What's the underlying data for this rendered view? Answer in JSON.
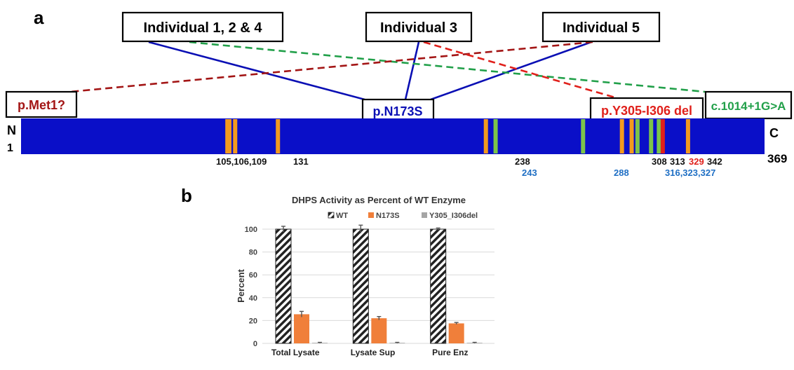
{
  "panel_a": {
    "panel_label": "a",
    "individuals": [
      {
        "id": "ind124",
        "label": "Individual 1, 2 & 4"
      },
      {
        "id": "ind3",
        "label": "Individual 3"
      },
      {
        "id": "ind5",
        "label": "Individual 5"
      }
    ],
    "variants": {
      "met1": {
        "label": "p.Met1?",
        "color": "#a31515"
      },
      "n173s": {
        "label": "p.N173S",
        "color": "#0a0fb4"
      },
      "del": {
        "label": "p.Y305-I306 del",
        "color": "#e0201b"
      },
      "splice": {
        "label": "c.1014+1G>A",
        "color": "#22a04a"
      }
    },
    "protein": {
      "n_term": "N",
      "c_term": "C",
      "start": "1",
      "end": "369",
      "bar_color": "#0a0fc8",
      "length": 369,
      "orange_positions": [
        105,
        106,
        109,
        131,
        238,
        308,
        313,
        342
      ],
      "green_positions": [
        243,
        288,
        316,
        323,
        327
      ],
      "red_positions": [
        329
      ]
    },
    "position_labels": {
      "black_1": "105,106,109",
      "black_2": "131",
      "black_3": "238",
      "blue_1": "243",
      "blue_2": "288",
      "black_4": "308",
      "black_5": "313",
      "red_1": "329",
      "black_6": "342",
      "blue_3": "316,323,327"
    },
    "colors": {
      "orange": "#f39a1e",
      "green": "#7cc44a",
      "red_tick": "#e0201b",
      "blue_text": "#1f6fc4"
    }
  },
  "panel_b": {
    "panel_label": "b",
    "chart_data": {
      "type": "bar",
      "title": "DHPS Activity as Percent of WT Enzyme",
      "ylabel": "Percent",
      "xlabel": "",
      "ylim": [
        0,
        100
      ],
      "yticks": [
        0,
        20,
        40,
        60,
        80,
        100
      ],
      "categories": [
        "Total Lysate",
        "Lysate Sup",
        "Pure Enz"
      ],
      "series": [
        {
          "name": "WT",
          "values": [
            100,
            100,
            100
          ],
          "errors": [
            2.5,
            3.5,
            1
          ],
          "color": "hatch"
        },
        {
          "name": "N173S",
          "values": [
            25.5,
            22,
            17.5
          ],
          "errors": [
            2.5,
            1.5,
            0.8
          ],
          "color": "#f07f3a"
        },
        {
          "name": "Y305_I306del",
          "values": [
            0.5,
            0.5,
            0.5
          ],
          "errors": [
            0.4,
            0.4,
            0.4
          ],
          "color": "#a5a5a5"
        }
      ],
      "grid": true,
      "legend": "top"
    }
  }
}
